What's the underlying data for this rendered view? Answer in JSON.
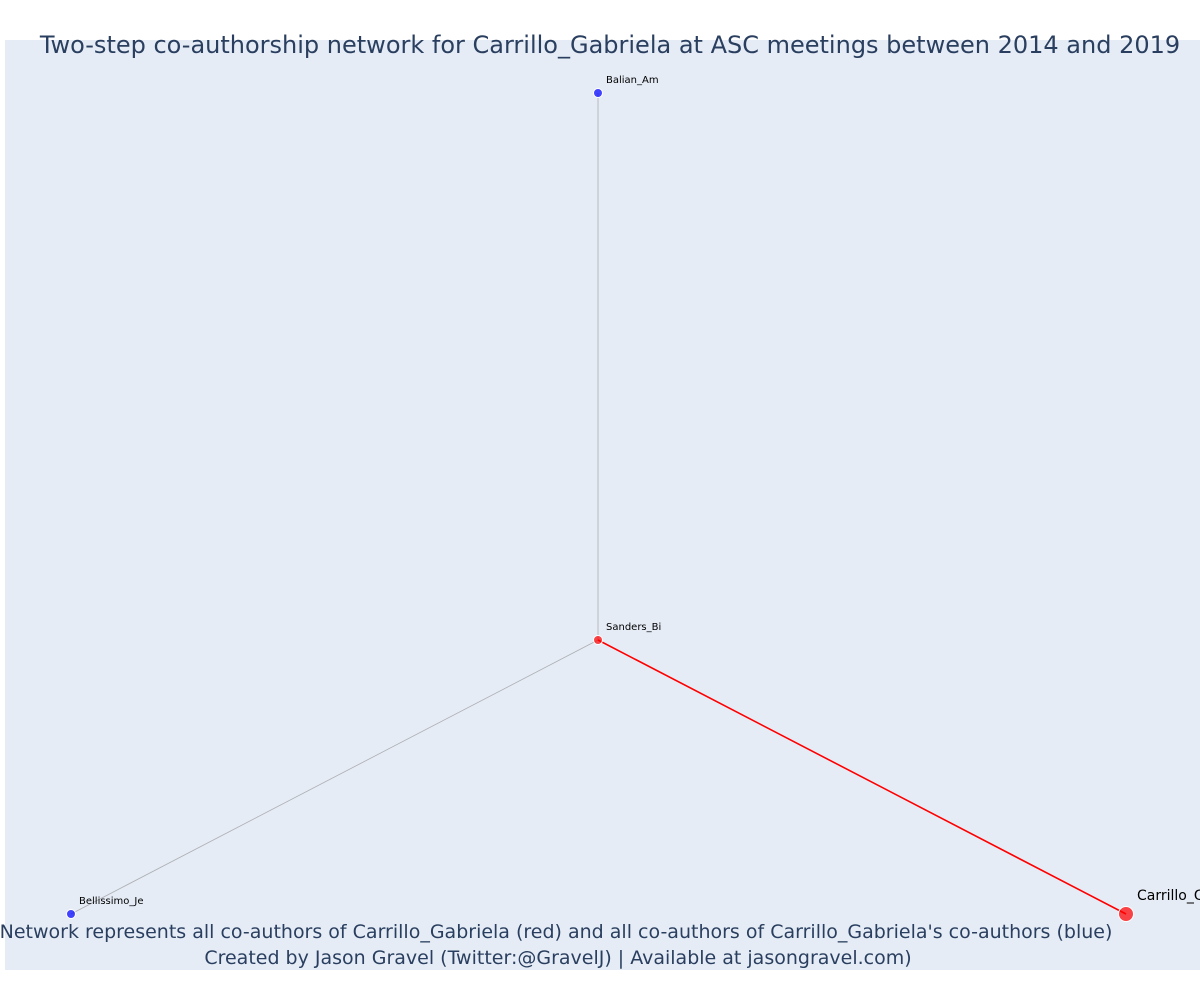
{
  "title": "Two-step co-authorship network for Carrillo_Gabriela at ASC meetings between 2014 and 2019",
  "caption_line1": "Network represents all co-authors of Carrillo_Gabriela (red) and all co-authors of Carrillo_Gabriela's co-authors (blue)",
  "caption_line2": "Created by Jason Gravel (Twitter:@GravelJ) | Available at jasongravel.com)",
  "colors": {
    "background": "#e5ecf6",
    "red": "#ff0000",
    "blue": "#0000ff",
    "edge_gray": "#9a9a9a",
    "text": "#2a3f5f"
  },
  "nodes": [
    {
      "id": "Balian_Am",
      "label": "Balian_Am",
      "group": "coauthor-of-coauthor",
      "color": "blue"
    },
    {
      "id": "Sanders_Bi",
      "label": "Sanders_Bi",
      "group": "coauthor",
      "color": "red"
    },
    {
      "id": "Bellissimo_Je",
      "label": "Bellissimo_Je",
      "group": "coauthor-of-coauthor",
      "color": "blue"
    },
    {
      "id": "Carrillo_Gabriela",
      "label": "Carrillo_G",
      "group": "focal",
      "color": "red"
    }
  ],
  "edges": [
    {
      "source": "Balian_Am",
      "target": "Sanders_Bi",
      "color": "gray"
    },
    {
      "source": "Bellissimo_Je",
      "target": "Sanders_Bi",
      "color": "gray"
    },
    {
      "source": "Sanders_Bi",
      "target": "Carrillo_Gabriela",
      "color": "red"
    }
  ]
}
